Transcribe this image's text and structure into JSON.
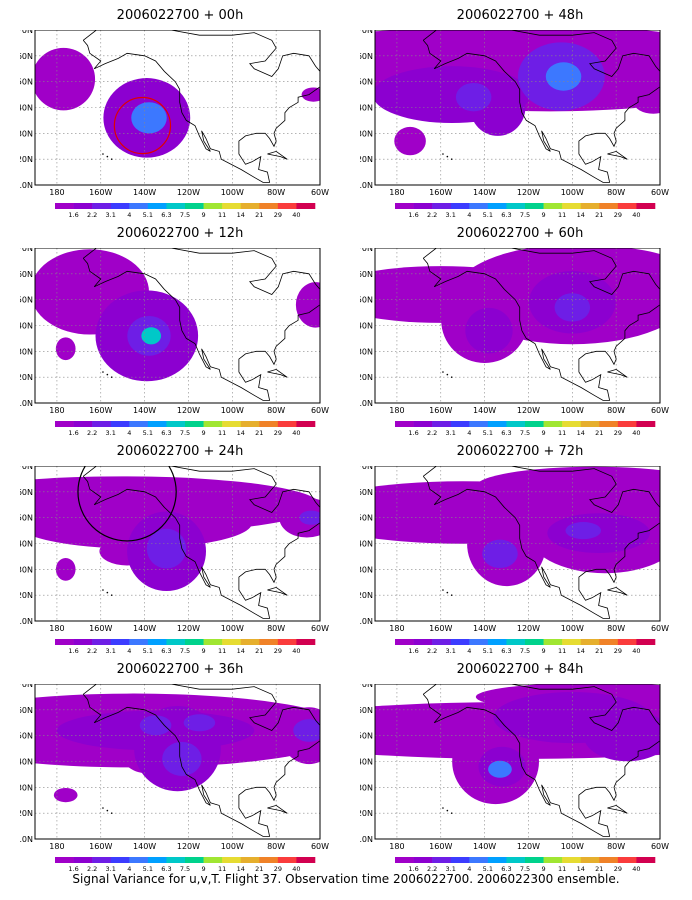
{
  "panels": [
    {
      "title": "2006022700 + 00h",
      "blobs": [
        {
          "lon": -177,
          "lat": 51,
          "rx": 16,
          "ry": 22,
          "level": 1
        },
        {
          "lon": -139,
          "lat": 36,
          "rx": 22,
          "ry": 28,
          "level": 2
        },
        {
          "lon": -138,
          "lat": 36,
          "rx": 9,
          "ry": 11,
          "level": 4
        },
        {
          "lon": -63,
          "lat": 45,
          "rx": 6,
          "ry": 5,
          "level": 1
        }
      ],
      "rings": [
        {
          "lon": -141,
          "lat": 33,
          "r": 16,
          "color": "#e00000"
        }
      ]
    },
    {
      "title": "2006022700 + 48h",
      "blobs": [
        {
          "lon": -168,
          "lat": 58,
          "rx": 80,
          "ry": 22,
          "level": 1
        },
        {
          "lon": -110,
          "lat": 55,
          "rx": 110,
          "ry": 30,
          "level": 1
        },
        {
          "lon": -155,
          "lat": 45,
          "rx": 40,
          "ry": 20,
          "level": 2
        },
        {
          "lon": -145,
          "lat": 44,
          "rx": 9,
          "ry": 10,
          "level": 3
        },
        {
          "lon": -105,
          "lat": 52,
          "rx": 22,
          "ry": 24,
          "level": 3
        },
        {
          "lon": -104,
          "lat": 52,
          "rx": 9,
          "ry": 10,
          "level": 4
        },
        {
          "lon": -134,
          "lat": 40,
          "rx": 14,
          "ry": 20,
          "level": 2
        },
        {
          "lon": -174,
          "lat": 27,
          "rx": 8,
          "ry": 10,
          "level": 1
        },
        {
          "lon": -63,
          "lat": 42,
          "rx": 10,
          "ry": 8,
          "level": 1
        }
      ],
      "rings": []
    },
    {
      "title": "2006022700 + 12h",
      "blobs": [
        {
          "lon": -165,
          "lat": 53,
          "rx": 30,
          "ry": 30,
          "level": 1
        },
        {
          "lon": -139,
          "lat": 36,
          "rx": 26,
          "ry": 32,
          "level": 2
        },
        {
          "lon": -138,
          "lat": 36,
          "rx": 11,
          "ry": 14,
          "level": 3
        },
        {
          "lon": -137,
          "lat": 36,
          "rx": 5,
          "ry": 6,
          "level": 5
        },
        {
          "lon": -176,
          "lat": 31,
          "rx": 5,
          "ry": 8,
          "level": 1
        },
        {
          "lon": -62,
          "lat": 48,
          "rx": 10,
          "ry": 16,
          "level": 1
        }
      ],
      "rings": []
    },
    {
      "title": "2006022700 + 60h",
      "blobs": [
        {
          "lon": -160,
          "lat": 52,
          "rx": 60,
          "ry": 20,
          "level": 1
        },
        {
          "lon": -140,
          "lat": 42,
          "rx": 22,
          "ry": 30,
          "level": 1
        },
        {
          "lon": -138,
          "lat": 38,
          "rx": 12,
          "ry": 16,
          "level": 2
        },
        {
          "lon": -100,
          "lat": 52,
          "rx": 60,
          "ry": 35,
          "level": 1
        },
        {
          "lon": -100,
          "lat": 49,
          "rx": 22,
          "ry": 22,
          "level": 2
        },
        {
          "lon": -100,
          "lat": 47,
          "rx": 9,
          "ry": 10,
          "level": 3
        },
        {
          "lon": -90,
          "lat": 64,
          "rx": 40,
          "ry": 12,
          "level": 1
        }
      ],
      "rings": []
    },
    {
      "title": "2006022700 + 24h",
      "blobs": [
        {
          "lon": -150,
          "lat": 55,
          "rx": 100,
          "ry": 20,
          "level": 1
        },
        {
          "lon": -145,
          "lat": 48,
          "rx": 60,
          "ry": 18,
          "level": 1
        },
        {
          "lon": -130,
          "lat": 37,
          "rx": 20,
          "ry": 28,
          "level": 2
        },
        {
          "lon": -130,
          "lat": 38,
          "rx": 10,
          "ry": 14,
          "level": 3
        },
        {
          "lon": -148,
          "lat": 37,
          "rx": 14,
          "ry": 10,
          "level": 1
        },
        {
          "lon": -176,
          "lat": 30,
          "rx": 5,
          "ry": 8,
          "level": 1
        },
        {
          "lon": -66,
          "lat": 50,
          "rx": 14,
          "ry": 14,
          "level": 1
        },
        {
          "lon": -64,
          "lat": 50,
          "rx": 6,
          "ry": 5,
          "level": 3
        }
      ],
      "rings": [
        {
          "lon": -148,
          "lat": 60,
          "r": 28,
          "color": "#000000"
        }
      ]
    },
    {
      "title": "2006022700 + 72h",
      "blobs": [
        {
          "lon": -150,
          "lat": 52,
          "rx": 80,
          "ry": 22,
          "level": 1
        },
        {
          "lon": -130,
          "lat": 40,
          "rx": 20,
          "ry": 30,
          "level": 1
        },
        {
          "lon": -133,
          "lat": 36,
          "rx": 9,
          "ry": 10,
          "level": 3
        },
        {
          "lon": -85,
          "lat": 45,
          "rx": 40,
          "ry": 30,
          "level": 1
        },
        {
          "lon": -90,
          "lat": 62,
          "rx": 60,
          "ry": 14,
          "level": 1
        },
        {
          "lon": -88,
          "lat": 44,
          "rx": 26,
          "ry": 14,
          "level": 2
        },
        {
          "lon": -95,
          "lat": 45,
          "rx": 9,
          "ry": 6,
          "level": 3
        }
      ],
      "rings": []
    },
    {
      "title": "2006022700 + 36h",
      "blobs": [
        {
          "lon": -145,
          "lat": 52,
          "rx": 110,
          "ry": 26,
          "level": 1
        },
        {
          "lon": -135,
          "lat": 52,
          "rx": 50,
          "ry": 14,
          "level": 2
        },
        {
          "lon": -125,
          "lat": 45,
          "rx": 22,
          "ry": 30,
          "level": 2
        },
        {
          "lon": -123,
          "lat": 41,
          "rx": 10,
          "ry": 12,
          "level": 3
        },
        {
          "lon": -135,
          "lat": 54,
          "rx": 8,
          "ry": 7,
          "level": 3
        },
        {
          "lon": -115,
          "lat": 55,
          "rx": 8,
          "ry": 6,
          "level": 3
        },
        {
          "lon": -138,
          "lat": 43,
          "rx": 14,
          "ry": 14,
          "level": 1
        },
        {
          "lon": -176,
          "lat": 27,
          "rx": 6,
          "ry": 5,
          "level": 1
        },
        {
          "lon": -65,
          "lat": 50,
          "rx": 14,
          "ry": 20,
          "level": 1
        },
        {
          "lon": -65,
          "lat": 52,
          "rx": 8,
          "ry": 8,
          "level": 3
        }
      ],
      "rings": []
    },
    {
      "title": "2006022700 + 84h",
      "blobs": [
        {
          "lon": -125,
          "lat": 52,
          "rx": 140,
          "ry": 20,
          "level": 1
        },
        {
          "lon": -135,
          "lat": 40,
          "rx": 22,
          "ry": 30,
          "level": 1
        },
        {
          "lon": -132,
          "lat": 38,
          "rx": 12,
          "ry": 14,
          "level": 2
        },
        {
          "lon": -133,
          "lat": 37,
          "rx": 6,
          "ry": 6,
          "level": 4
        },
        {
          "lon": -100,
          "lat": 57,
          "rx": 40,
          "ry": 18,
          "level": 2
        },
        {
          "lon": -75,
          "lat": 50,
          "rx": 22,
          "ry": 18,
          "level": 2
        },
        {
          "lon": -90,
          "lat": 65,
          "rx": 60,
          "ry": 10,
          "level": 1
        }
      ],
      "rings": []
    }
  ],
  "map": {
    "lon_labels": [
      "180",
      "160W",
      "140W",
      "120W",
      "100W",
      "80W",
      "60W"
    ],
    "lat_labels": [
      "70N",
      "60N",
      "50N",
      "40N",
      "30N",
      "20N",
      "10N"
    ]
  },
  "colorbar": {
    "labels": [
      "1.6",
      "2.2",
      "3.1",
      "4",
      "5.1",
      "6.3",
      "7.5",
      "9",
      "11",
      "14",
      "21",
      "29",
      "40"
    ],
    "colors": [
      "#a000c8",
      "#8c00d0",
      "#6e1ee6",
      "#3c3cff",
      "#3c78ff",
      "#00a0ff",
      "#00c8c8",
      "#00d28c",
      "#a0e632",
      "#e6dc32",
      "#e6af2d",
      "#f08228",
      "#fa3c3c",
      "#d20050"
    ]
  },
  "level_colors": [
    "#ffffff",
    "#a000c8",
    "#8c00d0",
    "#6e1ee6",
    "#3c78ff",
    "#00c8c8"
  ],
  "footer": "Signal Variance for u,v,T. Flight 37. Observation time 2006022700. 2006022300 ensemble."
}
